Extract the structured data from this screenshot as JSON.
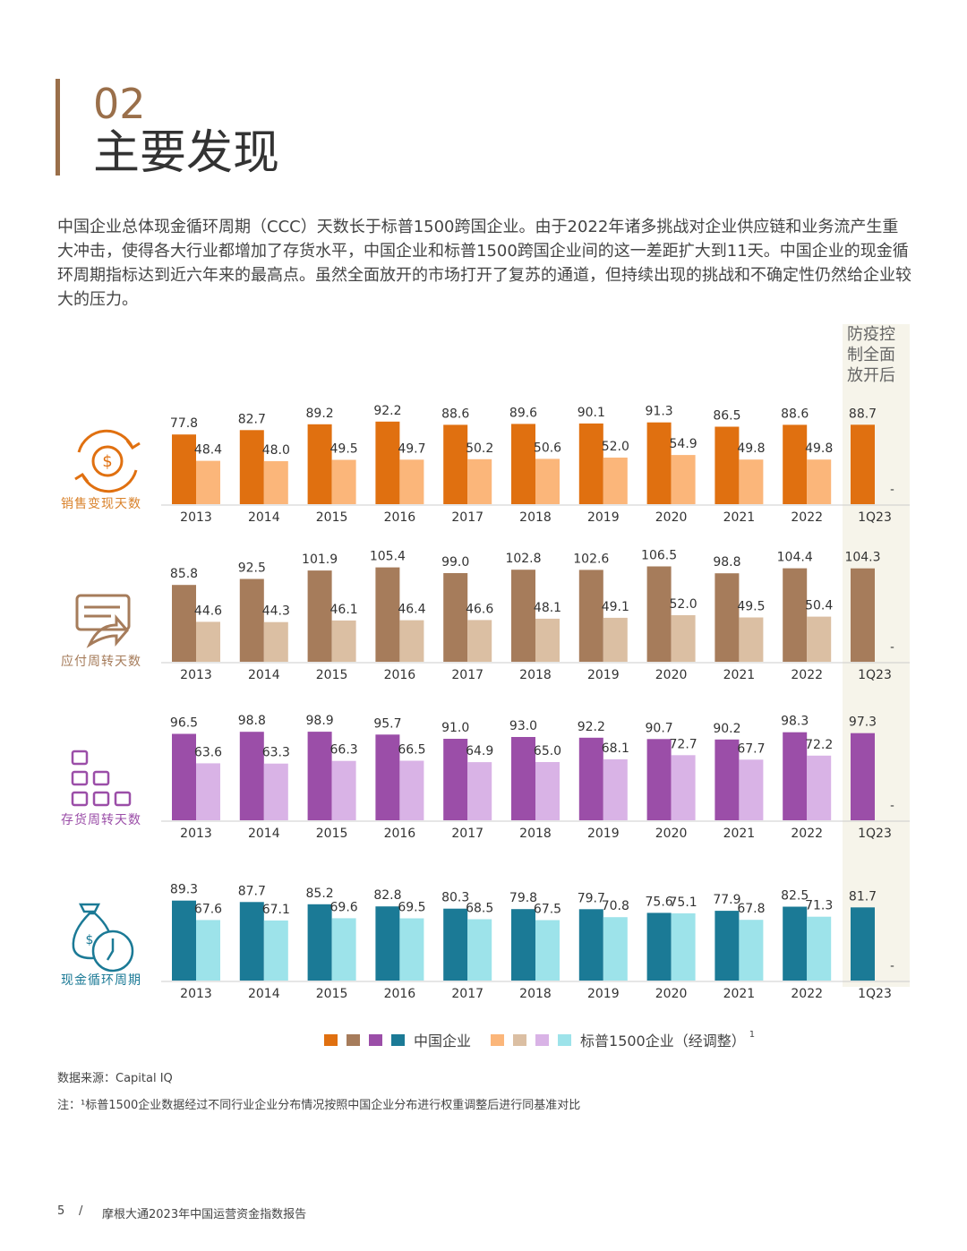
{
  "header": {
    "number": "02",
    "title": "主要发现"
  },
  "intro": "中国企业总体现金循环周期（CCC）天数长于标普1500跨国企业。由于2022年诸多挑战对企业供应链和业务流产生重大冲击，使得各大行业都增加了存货水平，中国企业和标普1500跨国企业间的这一差距扩大到11天。中国企业的现金循环周期指标达到近六年来的最高点。虽然全面放开的市场打开了复苏的通道，但持续出现的挑战和不确定性仍然给企业较大的压力。",
  "highlight_label": "防疫控制全面放开后",
  "chart_data": [
    {
      "type": "bar",
      "title": "销售变现天数",
      "label_color": "#d9822b",
      "categories": [
        "2013",
        "2014",
        "2015",
        "2016",
        "2017",
        "2018",
        "2019",
        "2020",
        "2021",
        "2022",
        "1Q23"
      ],
      "series": [
        {
          "color": "#e07010",
          "values": [
            77.8,
            82.7,
            89.2,
            92.2,
            88.6,
            89.6,
            90.1,
            91.3,
            86.5,
            88.6,
            88.7
          ]
        },
        {
          "color": "#fbb67a",
          "values": [
            48.4,
            48.0,
            49.5,
            49.7,
            50.2,
            50.6,
            52.0,
            54.9,
            49.8,
            49.8,
            null
          ],
          "value_labels": [
            "48.4",
            "48.0",
            "49.5",
            "49.7",
            "50.2",
            "50.6",
            "52.0",
            "54.9",
            "49.8",
            "49.8",
            "-"
          ]
        }
      ]
    },
    {
      "type": "bar",
      "title": "应付周转天数",
      "label_color": "#a67c5b",
      "categories": [
        "2013",
        "2014",
        "2015",
        "2016",
        "2017",
        "2018",
        "2019",
        "2020",
        "2021",
        "2022",
        "1Q23"
      ],
      "series": [
        {
          "color": "#a67c5b",
          "values": [
            85.8,
            92.5,
            101.9,
            105.4,
            99.0,
            102.8,
            102.6,
            106.5,
            98.8,
            104.4,
            104.3
          ],
          "value_labels": [
            "85.8",
            "92.5",
            "101.9",
            "105.4",
            "99.0",
            "102.8",
            "102.6",
            "106.5",
            "98.8",
            "104.4",
            "104.3"
          ]
        },
        {
          "color": "#dbbfa3",
          "values": [
            44.6,
            44.3,
            46.1,
            46.4,
            46.6,
            48.1,
            49.1,
            52.0,
            49.5,
            50.4,
            null
          ],
          "value_labels": [
            "44.6",
            "44.3",
            "46.1",
            "46.4",
            "46.6",
            "48.1",
            "49.1",
            "52.0",
            "49.5",
            "50.4",
            "-"
          ]
        }
      ]
    },
    {
      "type": "bar",
      "title": "存货周转天数",
      "label_color": "#9b4ea8",
      "categories": [
        "2013",
        "2014",
        "2015",
        "2016",
        "2017",
        "2018",
        "2019",
        "2020",
        "2021",
        "2022",
        "1Q23"
      ],
      "series": [
        {
          "color": "#9b4ea8",
          "values": [
            96.5,
            98.8,
            98.9,
            95.7,
            91.0,
            93.0,
            92.2,
            90.7,
            90.2,
            98.3,
            97.3
          ],
          "value_labels": [
            "96.5",
            "98.8",
            "98.9",
            "95.7",
            "91.0",
            "93.0",
            "92.2",
            "90.7",
            "90.2",
            "98.3",
            "97.3"
          ]
        },
        {
          "color": "#d9b3e6",
          "values": [
            63.6,
            63.3,
            66.3,
            66.5,
            64.9,
            65.0,
            68.1,
            72.7,
            67.7,
            72.2,
            null
          ],
          "value_labels": [
            "63.6",
            "63.3",
            "66.3",
            "66.5",
            "64.9",
            "65.0",
            "68.1",
            "72.7",
            "67.7",
            "72.2",
            "-"
          ]
        }
      ]
    },
    {
      "type": "bar",
      "title": "现金循环周期",
      "label_color": "#1b7a96",
      "categories": [
        "2013",
        "2014",
        "2015",
        "2016",
        "2017",
        "2018",
        "2019",
        "2020",
        "2021",
        "2022",
        "1Q23"
      ],
      "series": [
        {
          "color": "#1b7a96",
          "values": [
            89.3,
            87.7,
            85.2,
            82.8,
            80.3,
            79.8,
            79.7,
            75.6,
            77.9,
            82.5,
            81.7
          ]
        },
        {
          "color": "#9de3ea",
          "values": [
            67.6,
            67.1,
            69.6,
            69.5,
            68.5,
            67.5,
            70.8,
            75.1,
            67.8,
            71.3,
            null
          ],
          "value_labels": [
            "67.6",
            "67.1",
            "69.6",
            "69.5",
            "68.5",
            "67.5",
            "70.8",
            "75.1",
            "67.8",
            "71.3",
            "-"
          ]
        }
      ]
    }
  ],
  "legend": [
    {
      "name": "中国企业",
      "colors": [
        "#e07010",
        "#a67c5b",
        "#9b4ea8",
        "#1b7a96"
      ]
    },
    {
      "name": "标普1500企业（经调整）",
      "colors": [
        "#fbb67a",
        "#dbbfa3",
        "#d9b3e6",
        "#9de3ea"
      ],
      "note_mark": "1"
    }
  ],
  "source": "数据来源：Capital IQ",
  "note": "注：¹标普1500企业数据经过不同行业企业分布情况按照中国企业分布进行权重调整后进行同基准对比",
  "footer": {
    "page": "5",
    "separator": "/",
    "report": "摩根大通2023年中国运营资金指数报告"
  }
}
